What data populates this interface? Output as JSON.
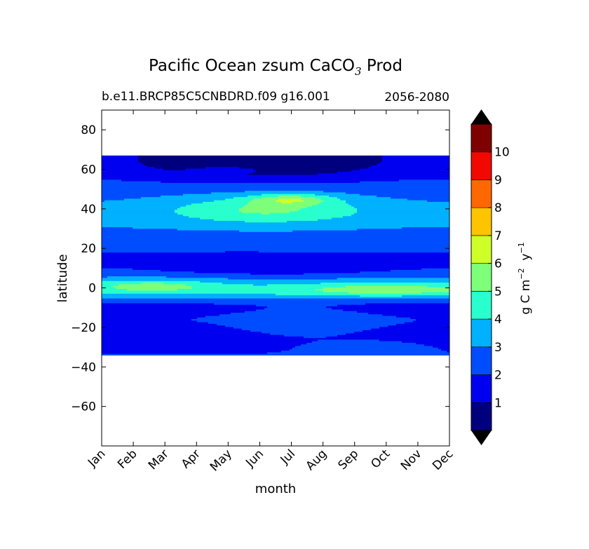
{
  "chart_data": {
    "type": "heatmap",
    "title_main": "Pacific Ocean zsum CaCO",
    "title_sub": "3",
    "title_end": "Prod",
    "subtitle_left": "b.e11.BRCP85C5CNBDRD.f09 g16.001",
    "subtitle_right": "2056-2080",
    "xlabel": "month",
    "ylabel": "latitude",
    "x_tick_labels": [
      "Jan",
      "Feb",
      "Mar",
      "Apr",
      "May",
      "Jun",
      "Jul",
      "Aug",
      "Sep",
      "Oct",
      "Nov",
      "Dec"
    ],
    "x_range": [
      1,
      12
    ],
    "ylim": [
      -80,
      90
    ],
    "y_ticks": [
      80,
      60,
      40,
      20,
      0,
      -20,
      -40,
      -60
    ],
    "y_tick_labels": [
      "80",
      "60",
      "40",
      "20",
      "0",
      "−20",
      "−40",
      "−60"
    ],
    "data_lat_range": [
      -34,
      67
    ],
    "colorbar": {
      "label_main": "g C m",
      "label_exp1": "−2",
      "label_mid": "y",
      "label_exp2": "−1",
      "levels": [
        0,
        1,
        2,
        3,
        4,
        5,
        6,
        7,
        8,
        9,
        10,
        11
      ],
      "tick_labels": [
        "1",
        "2",
        "3",
        "4",
        "5",
        "6",
        "7",
        "8",
        "9",
        "10"
      ],
      "colors": [
        "#00007f",
        "#0000f1",
        "#004dff",
        "#00b1ff",
        "#29ffce",
        "#7dff7a",
        "#ceff29",
        "#ffc400",
        "#ff6800",
        "#f10800",
        "#7f0000"
      ],
      "extend": "both",
      "over_color": "#000000",
      "under_color": "#000000"
    },
    "levels_map": [
      {
        "x": [
          1,
          1.5,
          2,
          2.5,
          3,
          3.5,
          4,
          4.5,
          5,
          5.5,
          6,
          6.5,
          7,
          7.5,
          8,
          8.5,
          9,
          9.5,
          10,
          10.5,
          11,
          11.5,
          12
        ],
        "lat": [
          -34,
          -30,
          -26,
          -22,
          -18,
          -14,
          -10,
          -6,
          -2,
          2,
          6,
          10,
          14,
          18,
          22,
          26,
          30,
          34,
          38,
          42,
          46,
          50,
          54,
          58,
          62,
          66
        ],
        "note_ref": "field"
      }
    ]
  }
}
